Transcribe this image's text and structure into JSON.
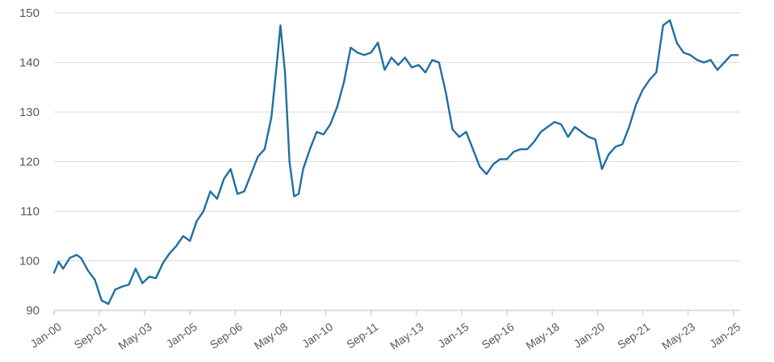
{
  "chart_data": {
    "type": "line",
    "title": "",
    "xlabel": "",
    "ylabel": "",
    "ylim": [
      90,
      150
    ],
    "xlim": [
      "2000-01",
      "2025-04"
    ],
    "y_ticks": [
      90,
      100,
      110,
      120,
      130,
      140,
      150
    ],
    "x_ticks": [
      {
        "date": "2000-01",
        "label": "Jan-00"
      },
      {
        "date": "2001-09",
        "label": "Sep-01"
      },
      {
        "date": "2003-05",
        "label": "May-03"
      },
      {
        "date": "2005-01",
        "label": "Jan-05"
      },
      {
        "date": "2006-09",
        "label": "Sep-06"
      },
      {
        "date": "2008-05",
        "label": "May-08"
      },
      {
        "date": "2010-01",
        "label": "Jan-10"
      },
      {
        "date": "2011-09",
        "label": "Sep-11"
      },
      {
        "date": "2013-05",
        "label": "May-13"
      },
      {
        "date": "2015-01",
        "label": "Jan-15"
      },
      {
        "date": "2016-09",
        "label": "Sep-16"
      },
      {
        "date": "2018-05",
        "label": "May-18"
      },
      {
        "date": "2020-01",
        "label": "Jan-20"
      },
      {
        "date": "2021-09",
        "label": "Sep-21"
      },
      {
        "date": "2023-05",
        "label": "May-23"
      },
      {
        "date": "2025-01",
        "label": "Jan-25"
      }
    ],
    "grid": "horizontal",
    "line_color": "#1f6fa1",
    "grid_color": "#d9d9d9",
    "axis_color": "#bfbfbf",
    "series": [
      {
        "x": [
          "2000-01",
          "2000-03",
          "2000-05",
          "2000-08",
          "2000-11",
          "2001-01",
          "2001-04",
          "2001-07",
          "2001-10",
          "2002-01",
          "2002-04",
          "2002-07",
          "2002-10",
          "2003-01",
          "2003-04",
          "2003-07",
          "2003-10",
          "2004-01",
          "2004-04",
          "2004-07",
          "2004-10",
          "2005-01",
          "2005-04",
          "2005-07",
          "2005-10",
          "2006-01",
          "2006-04",
          "2006-07",
          "2006-10",
          "2007-01",
          "2007-04",
          "2007-07",
          "2007-10",
          "2008-01",
          "2008-03",
          "2008-05",
          "2008-07",
          "2008-09",
          "2008-11",
          "2009-01",
          "2009-03",
          "2009-06",
          "2009-09",
          "2009-12",
          "2010-03",
          "2010-06",
          "2010-09",
          "2010-12",
          "2011-03",
          "2011-06",
          "2011-09",
          "2011-12",
          "2012-03",
          "2012-06",
          "2012-09",
          "2012-12",
          "2013-03",
          "2013-06",
          "2013-09",
          "2013-12",
          "2014-03",
          "2014-06",
          "2014-09",
          "2014-12",
          "2015-03",
          "2015-06",
          "2015-09",
          "2015-12",
          "2016-03",
          "2016-06",
          "2016-09",
          "2016-12",
          "2017-03",
          "2017-06",
          "2017-09",
          "2017-12",
          "2018-03",
          "2018-06",
          "2018-09",
          "2018-12",
          "2019-03",
          "2019-06",
          "2019-09",
          "2019-12",
          "2020-03",
          "2020-06",
          "2020-09",
          "2020-12",
          "2021-03",
          "2021-06",
          "2021-09",
          "2021-12",
          "2022-03",
          "2022-06",
          "2022-09",
          "2022-12",
          "2023-03",
          "2023-06",
          "2023-09",
          "2023-12",
          "2024-03",
          "2024-06",
          "2024-09",
          "2024-12",
          "2025-03"
        ],
        "values": [
          97.6,
          99.8,
          98.4,
          100.6,
          101.2,
          100.5,
          98.0,
          96.2,
          92.0,
          91.3,
          94.2,
          94.8,
          95.2,
          98.4,
          95.5,
          96.8,
          96.5,
          99.5,
          101.5,
          103.0,
          105.0,
          104.0,
          108.0,
          110.0,
          114.0,
          112.5,
          116.5,
          118.5,
          113.5,
          114.0,
          117.5,
          121.0,
          122.5,
          129.0,
          138.0,
          147.5,
          138.0,
          120.0,
          113.0,
          113.5,
          118.5,
          122.5,
          126.0,
          125.5,
          127.5,
          131.0,
          136.0,
          143.0,
          142.0,
          141.5,
          142.0,
          144.0,
          138.5,
          141.0,
          139.5,
          141.0,
          139.0,
          139.5,
          138.0,
          140.5,
          140.0,
          134.0,
          126.5,
          125.0,
          126.0,
          122.5,
          119.0,
          117.5,
          119.5,
          120.5,
          120.5,
          122.0,
          122.5,
          122.5,
          124.0,
          126.0,
          127.0,
          128.0,
          127.5,
          125.0,
          127.0,
          126.0,
          125.0,
          124.5,
          118.5,
          121.5,
          123.0,
          123.5,
          127.0,
          131.5,
          134.5,
          136.5,
          138.0,
          147.5,
          148.5,
          144.0,
          142.0,
          141.5,
          140.5,
          140.0,
          140.5,
          138.5,
          140.0,
          141.5,
          141.5
        ]
      }
    ]
  }
}
